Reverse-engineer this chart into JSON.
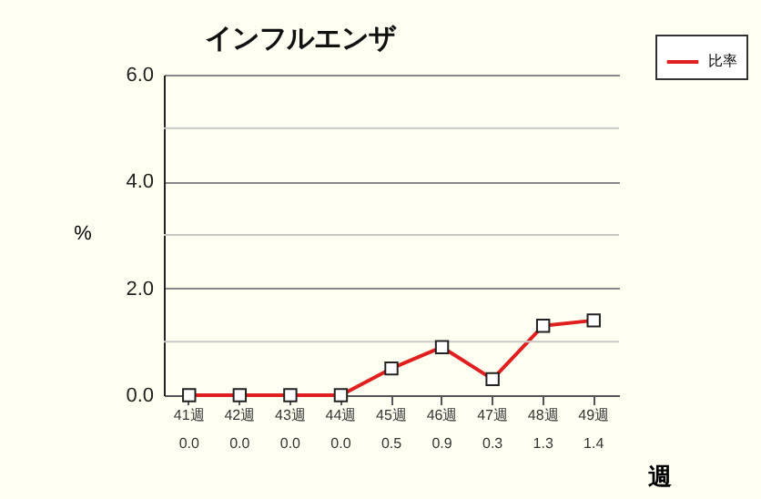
{
  "chart_data": {
    "type": "line",
    "title": "インフルエンザ",
    "xlabel": "週",
    "ylabel": "%",
    "categories": [
      "41週",
      "42週",
      "43週",
      "44週",
      "45週",
      "46週",
      "47週",
      "48週",
      "49週"
    ],
    "series": [
      {
        "name": "比率",
        "color": "#e02020",
        "values": [
          0.0,
          0.0,
          0.0,
          0.0,
          0.5,
          0.9,
          0.3,
          1.3,
          1.4
        ],
        "value_labels": [
          "0.0",
          "0.0",
          "0.0",
          "0.0",
          "0.5",
          "0.9",
          "0.3",
          "1.3",
          "1.4"
        ]
      }
    ],
    "ylim": [
      0,
      6
    ],
    "yticks": [
      {
        "value": 0,
        "label": "0.0"
      },
      {
        "value": 1,
        "label": null
      },
      {
        "value": 2,
        "label": "2.0"
      },
      {
        "value": 3,
        "label": null
      },
      {
        "value": 4,
        "label": "4.0"
      },
      {
        "value": 5,
        "label": null
      },
      {
        "value": 6,
        "label": "6.0"
      }
    ],
    "grid": "y",
    "legend": "top right",
    "marker": "square",
    "line_style": "solid"
  }
}
